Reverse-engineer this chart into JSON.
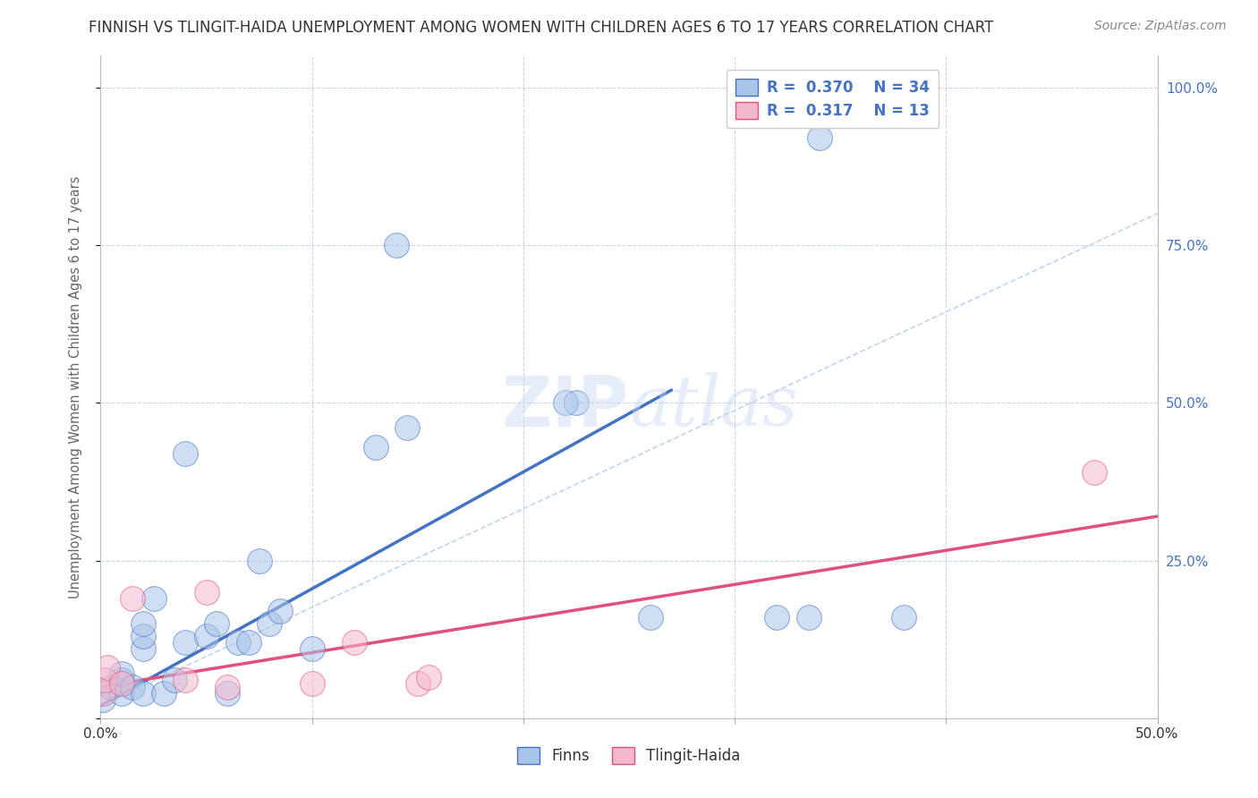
{
  "title": "FINNISH VS TLINGIT-HAIDA UNEMPLOYMENT AMONG WOMEN WITH CHILDREN AGES 6 TO 17 YEARS CORRELATION CHART",
  "source": "Source: ZipAtlas.com",
  "xlabel": "",
  "ylabel": "Unemployment Among Women with Children Ages 6 to 17 years",
  "xlim": [
    0.0,
    0.5
  ],
  "ylim": [
    0.0,
    1.05
  ],
  "xticks": [
    0.0,
    0.1,
    0.2,
    0.3,
    0.4,
    0.5
  ],
  "xticklabels": [
    "0.0%",
    "",
    "",
    "",
    "",
    "50.0%"
  ],
  "yticks": [
    0.0,
    0.25,
    0.5,
    0.75,
    1.0
  ],
  "yticklabels": [
    "",
    "25.0%",
    "50.0%",
    "75.0%",
    "100.0%"
  ],
  "legend_r1": "R = 0.370",
  "legend_n1": "N = 34",
  "legend_r2": "R = 0.317",
  "legend_n2": "N = 13",
  "color_finns": "#a8c4e8",
  "color_tlingit": "#f4b8cc",
  "color_line_finns": "#4472c4",
  "color_line_tlingit": "#e05080",
  "color_line_ext": "#c0d4f0",
  "watermark": "ZIPatlas",
  "finns_x": [
    0.001,
    0.005,
    0.01,
    0.01,
    0.01,
    0.015,
    0.02,
    0.02,
    0.02,
    0.02,
    0.025,
    0.03,
    0.035,
    0.04,
    0.04,
    0.05,
    0.055,
    0.06,
    0.065,
    0.07,
    0.075,
    0.08,
    0.085,
    0.1,
    0.13,
    0.14,
    0.145,
    0.22,
    0.225,
    0.26,
    0.32,
    0.335,
    0.34,
    0.38
  ],
  "finns_y": [
    0.03,
    0.05,
    0.04,
    0.06,
    0.07,
    0.05,
    0.04,
    0.11,
    0.13,
    0.15,
    0.19,
    0.04,
    0.06,
    0.12,
    0.42,
    0.13,
    0.15,
    0.04,
    0.12,
    0.12,
    0.25,
    0.15,
    0.17,
    0.11,
    0.43,
    0.75,
    0.46,
    0.5,
    0.5,
    0.16,
    0.16,
    0.16,
    0.92,
    0.16
  ],
  "tlingit_x": [
    0.001,
    0.002,
    0.003,
    0.01,
    0.015,
    0.04,
    0.05,
    0.06,
    0.1,
    0.12,
    0.15,
    0.155,
    0.47
  ],
  "tlingit_y": [
    0.04,
    0.06,
    0.08,
    0.055,
    0.19,
    0.06,
    0.2,
    0.05,
    0.055,
    0.12,
    0.055,
    0.065,
    0.39
  ],
  "finns_line_x0": 0.0,
  "finns_line_x1": 0.27,
  "finns_line_y0": 0.02,
  "finns_line_y1": 0.52,
  "tlingit_line_x0": 0.0,
  "tlingit_line_x1": 0.5,
  "tlingit_line_y0": 0.05,
  "tlingit_line_y1": 0.32,
  "ext_line_x0": 0.0,
  "ext_line_x1": 0.5,
  "ext_line_y0": 0.02,
  "ext_line_y1": 0.8,
  "background_color": "#ffffff",
  "grid_color": "#c8d4e8",
  "title_color": "#333333",
  "axis_label_color": "#666666",
  "tick_label_color_right": "#4472c4",
  "legend_label_color": "#4472c4"
}
